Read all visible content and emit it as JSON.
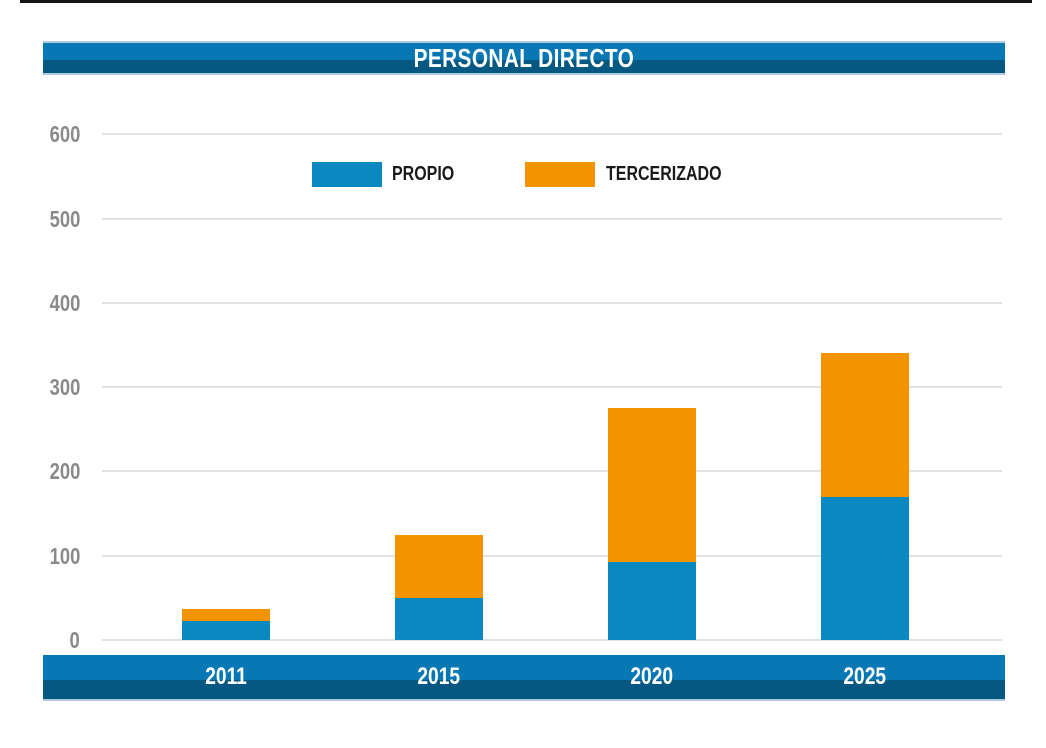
{
  "title": "PERSONAL DIRECTO",
  "colors": {
    "propio_blue": "#0989BF",
    "tercerizado_orange": "#F29400",
    "banner_light_blue": "#0778B4",
    "banner_dark_blue": "#045881",
    "banner_edge_light": "#AECBDD",
    "grid_line": "#E2E2E2",
    "axis_label_gray": "#8A8A8A",
    "legend_text": "#1A1A1A",
    "top_rule": "#151515",
    "title_text": "#FFFFFF",
    "year_text": "#FFFFFF"
  },
  "chart_data": {
    "type": "bar",
    "stacked": true,
    "title": "PERSONAL DIRECTO",
    "categories": [
      "2011",
      "2015",
      "2020",
      "2025"
    ],
    "series": [
      {
        "name": "PROPIO",
        "color": "#0989BF",
        "values": [
          22,
          50,
          92,
          170
        ]
      },
      {
        "name": "TERCERIZADO",
        "color": "#F29400",
        "values": [
          15,
          75,
          183,
          170
        ]
      }
    ],
    "totals": [
      37,
      125,
      275,
      340
    ],
    "ylim": [
      0,
      600
    ],
    "yticks": [
      0,
      100,
      200,
      300,
      400,
      500,
      600
    ],
    "grid": true,
    "legend_position": "top-center",
    "xlabel": "",
    "ylabel": ""
  },
  "legend": {
    "items": [
      {
        "label": "PROPIO",
        "color": "#0989BF"
      },
      {
        "label": "TERCERIZADO",
        "color": "#F29400"
      }
    ]
  }
}
